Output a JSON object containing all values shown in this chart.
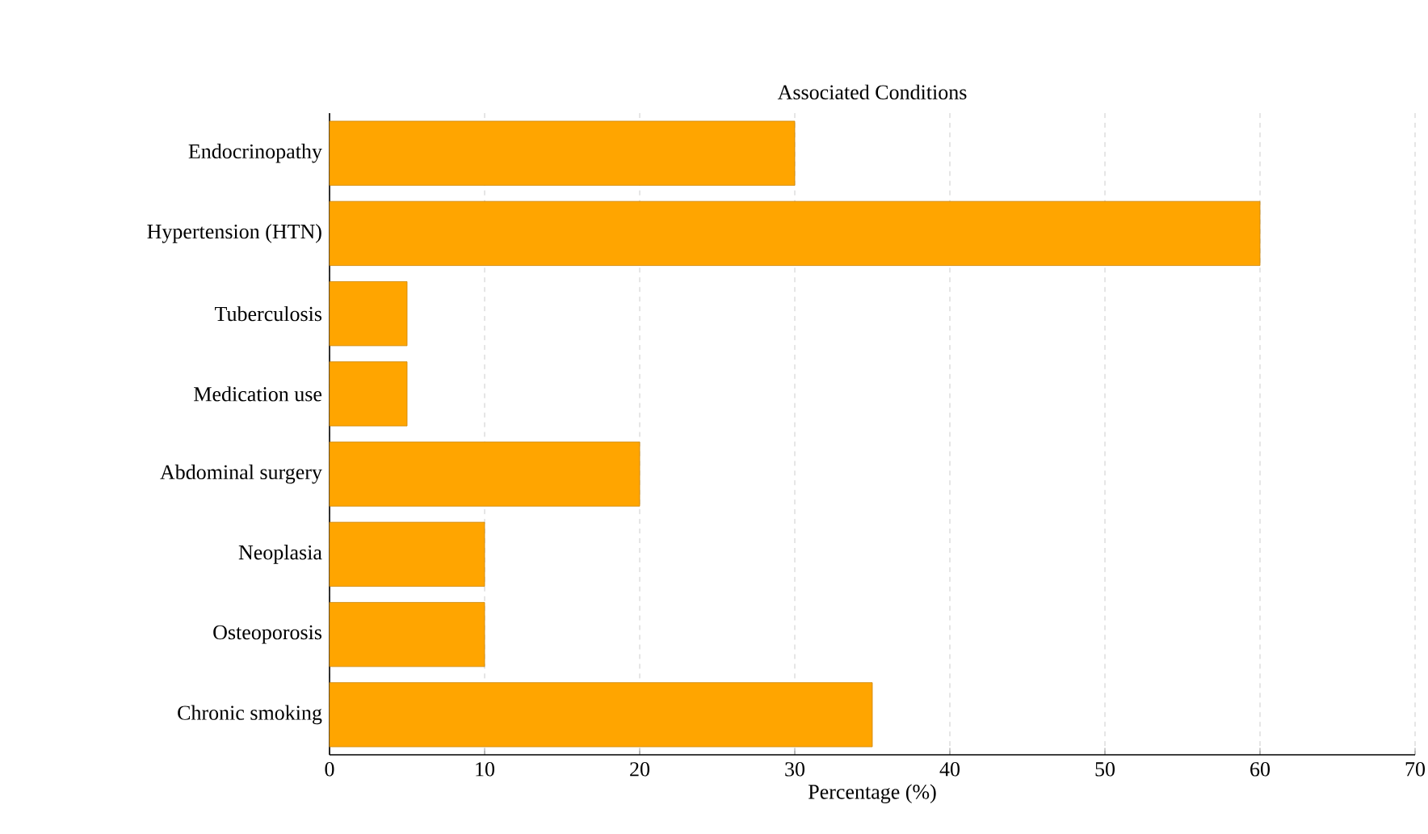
{
  "chart_data": {
    "type": "bar",
    "orientation": "horizontal",
    "title": "Associated Conditions",
    "xlabel": "Percentage (%)",
    "categories": [
      "Endocrinopathy",
      "Hypertension (HTN)",
      "Tuberculosis",
      "Medication use",
      "Abdominal surgery",
      "Neoplasia",
      "Osteoporosis",
      "Chronic smoking"
    ],
    "values": [
      30,
      60,
      5,
      5,
      20,
      10,
      10,
      35
    ],
    "color": "#ffa500",
    "xlim": [
      0,
      70
    ],
    "xticks": [
      0,
      10,
      20,
      30,
      40,
      50,
      60,
      70
    ],
    "grid": "x"
  }
}
